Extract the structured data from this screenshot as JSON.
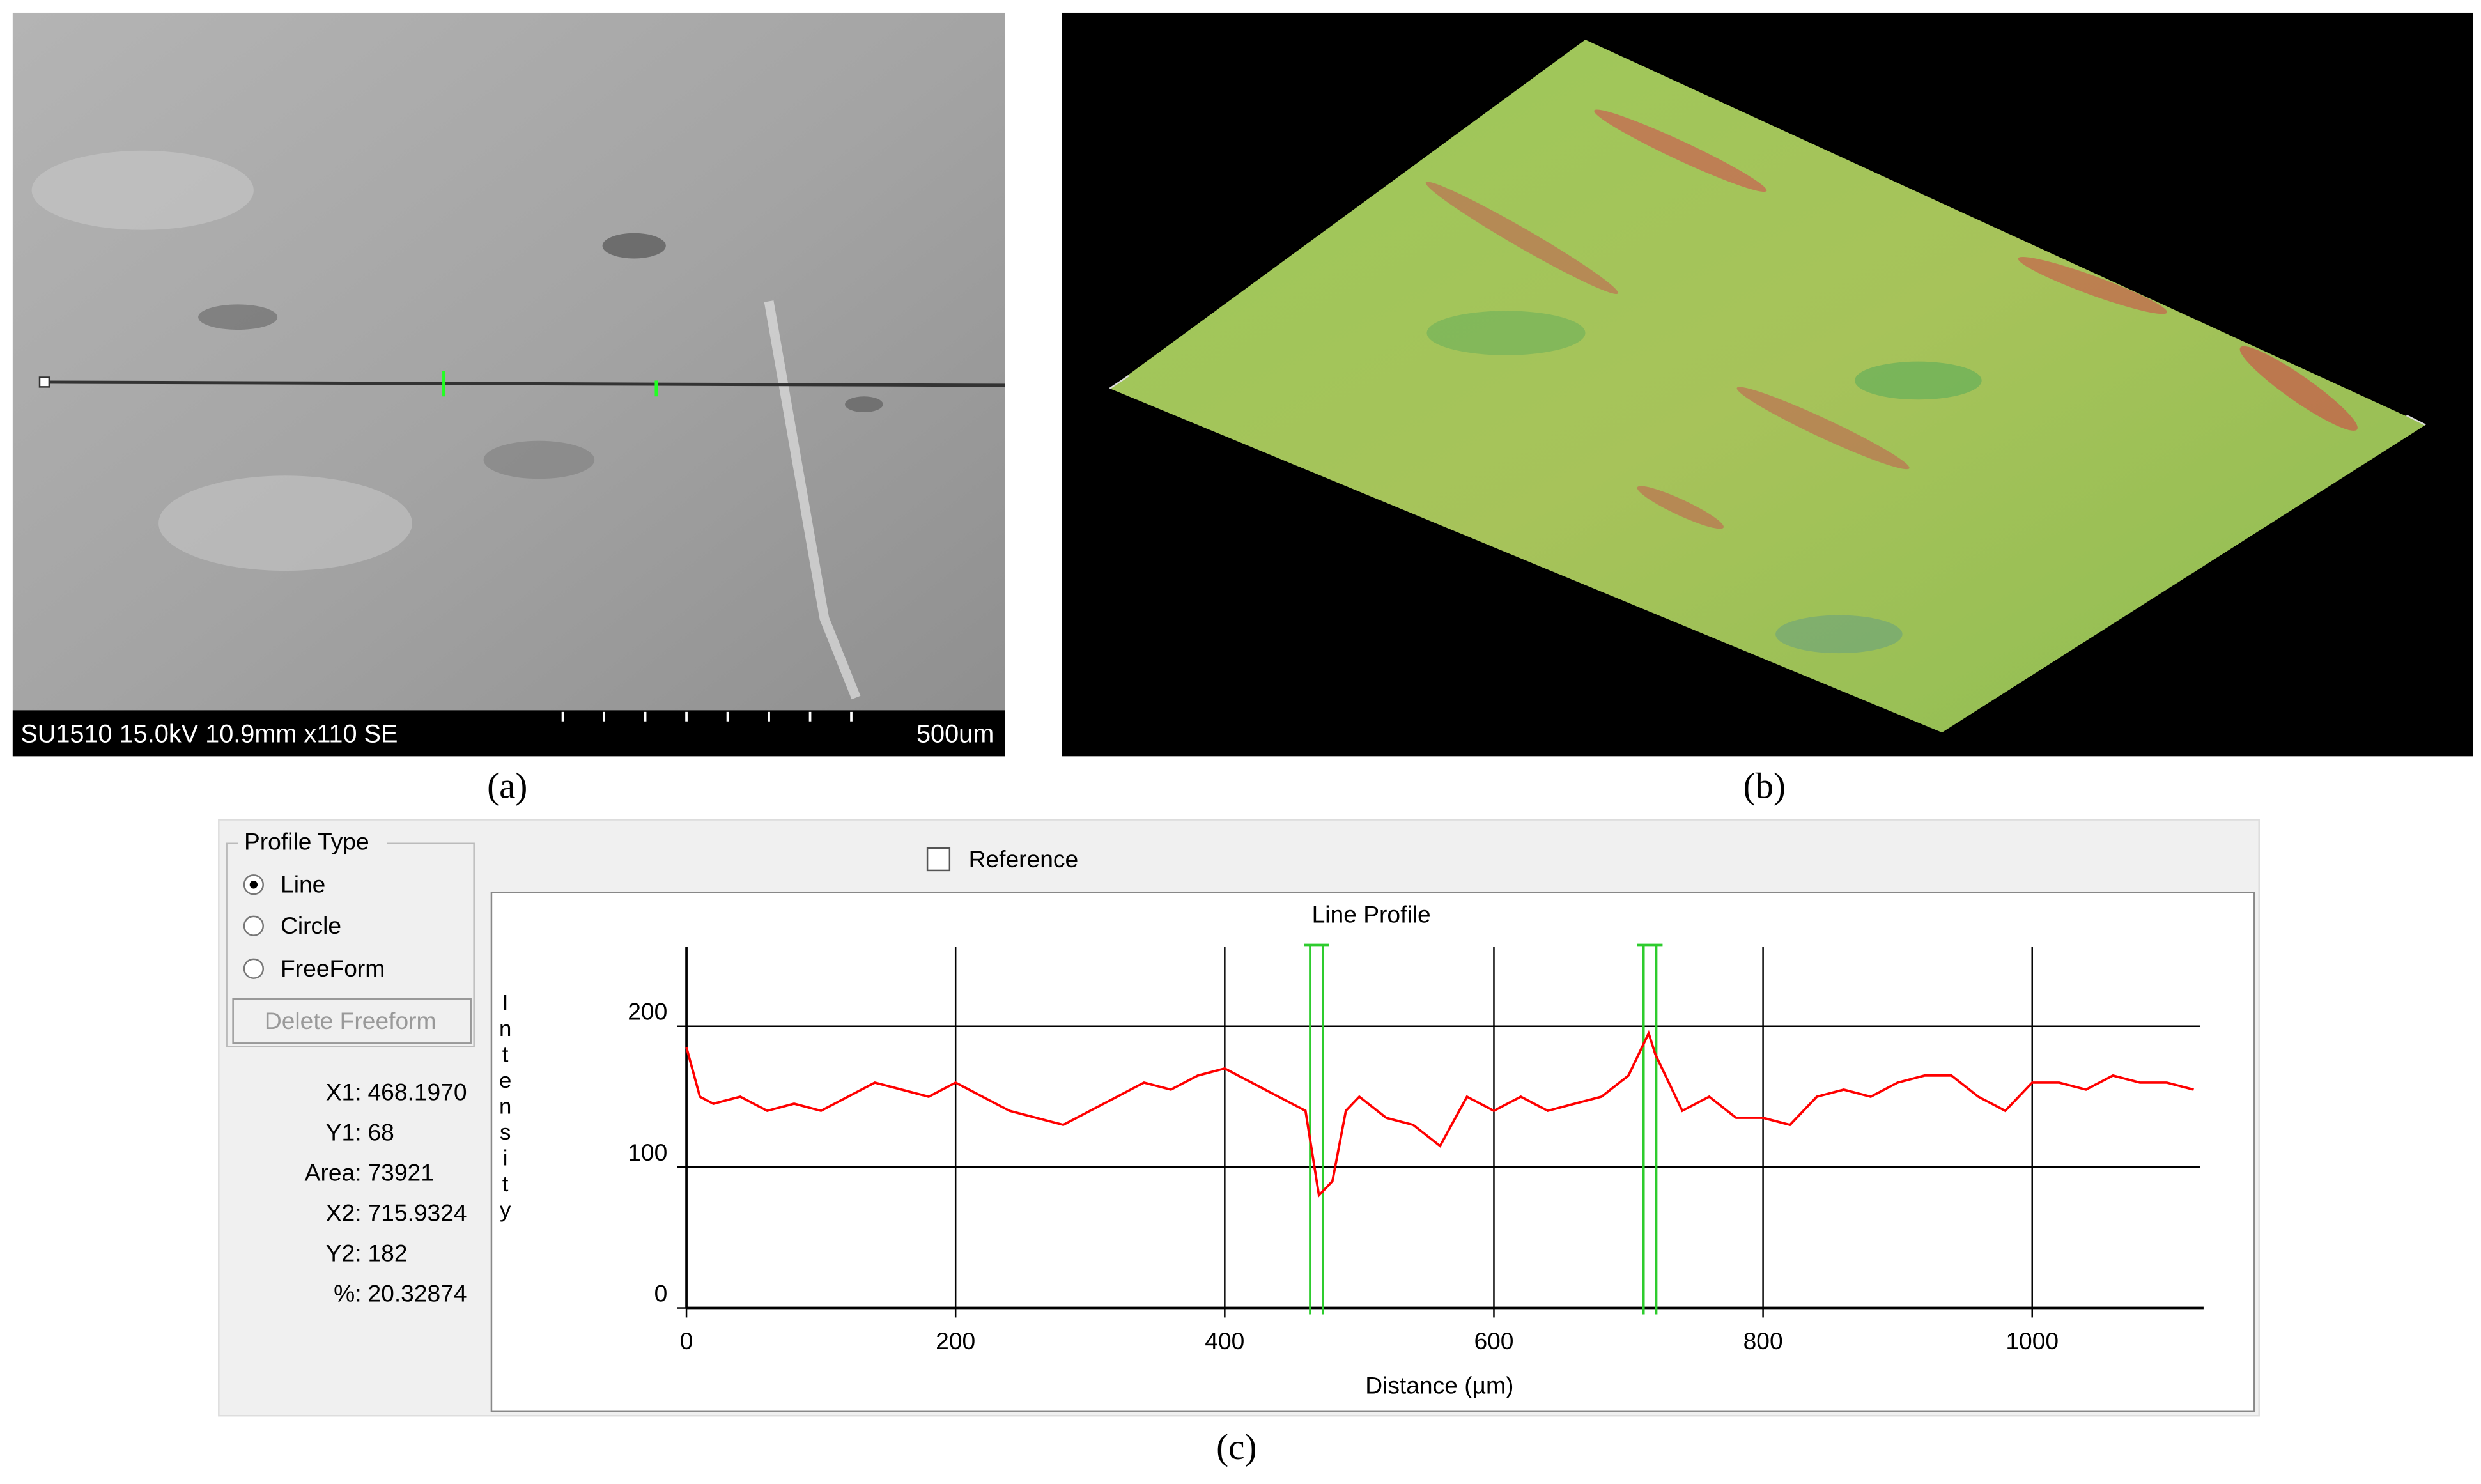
{
  "panel_a": {
    "caption": "(a)",
    "info_bar": "SU1510 15.0kV 10.9mm x110 SE",
    "scale_label": "500um"
  },
  "panel_b": {
    "caption": "(b)"
  },
  "panel_c": {
    "caption": "(c)",
    "profile_type": {
      "title": "Profile Type",
      "options": [
        "Line",
        "Circle",
        "FreeForm"
      ],
      "button": "Delete Freeform"
    },
    "reference": "Reference",
    "info": [
      [
        "X1:",
        "468.1970"
      ],
      [
        "Y1:",
        "68"
      ],
      [
        "Area:",
        "73921"
      ],
      [
        "X2:",
        "715.9324"
      ],
      [
        "Y2:",
        "182"
      ],
      [
        "%:",
        "20.32874"
      ]
    ]
  },
  "chart_data": {
    "type": "line",
    "title": "Line Profile",
    "x_label": "Distance (µm)",
    "y_label": "Intensity",
    "x": [
      0,
      10,
      20,
      40,
      60,
      80,
      100,
      120,
      140,
      160,
      180,
      200,
      220,
      240,
      260,
      280,
      300,
      320,
      340,
      360,
      380,
      400,
      420,
      440,
      460,
      470,
      480,
      490,
      500,
      520,
      540,
      560,
      580,
      600,
      620,
      640,
      660,
      680,
      700,
      715,
      720,
      740,
      760,
      780,
      800,
      820,
      840,
      860,
      880,
      900,
      920,
      940,
      960,
      980,
      1000,
      1020,
      1040,
      1060,
      1080,
      1100,
      1120
    ],
    "values": [
      185,
      150,
      145,
      150,
      140,
      145,
      140,
      150,
      160,
      155,
      150,
      160,
      150,
      140,
      135,
      130,
      140,
      150,
      160,
      155,
      165,
      170,
      160,
      150,
      140,
      80,
      90,
      140,
      150,
      135,
      130,
      115,
      150,
      140,
      150,
      140,
      145,
      150,
      165,
      195,
      180,
      140,
      150,
      135,
      135,
      130,
      150,
      155,
      150,
      160,
      165,
      165,
      150,
      140,
      160,
      160,
      155,
      165,
      160,
      160,
      155
    ],
    "color": "#ff0000",
    "xlim": [
      0,
      1125
    ],
    "xticks": [
      0,
      200,
      400,
      600,
      800,
      1000
    ],
    "ylim": [
      0,
      260
    ],
    "yticks": [
      0,
      100,
      200
    ],
    "grid": true
  }
}
